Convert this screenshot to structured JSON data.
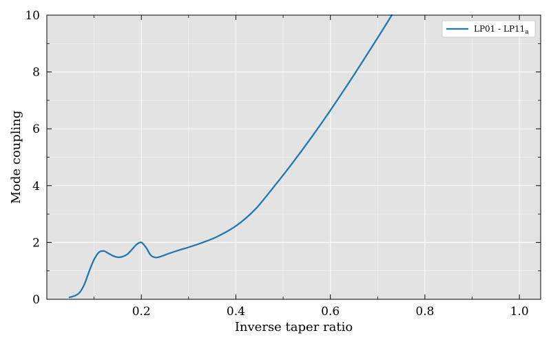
{
  "chart_data": {
    "type": "line",
    "title": "",
    "xlabel": "Inverse taper ratio",
    "ylabel": "Mode coupling",
    "xlim": [
      0.0,
      1.045
    ],
    "ylim": [
      0,
      10
    ],
    "xticks": [
      0.2,
      0.4,
      0.6,
      0.8,
      1.0
    ],
    "xtick_labels": [
      "0.2",
      "0.4",
      "0.6",
      "0.8",
      "1.0"
    ],
    "yticks": [
      0,
      2,
      4,
      6,
      8,
      10
    ],
    "ytick_labels": [
      "0",
      "2",
      "4",
      "6",
      "8",
      "10"
    ],
    "grid": true,
    "legend_position": "top-right",
    "background": "#e3e3e3",
    "series": [
      {
        "name": "LP01 - LP11",
        "name_subscript": "a",
        "color": "#1f77b4",
        "x": [
          0.048,
          0.06,
          0.07,
          0.08,
          0.09,
          0.1,
          0.11,
          0.12,
          0.13,
          0.14,
          0.15,
          0.16,
          0.17,
          0.18,
          0.19,
          0.2,
          0.21,
          0.22,
          0.23,
          0.24,
          0.26,
          0.28,
          0.3,
          0.33,
          0.36,
          0.4,
          0.44,
          0.48,
          0.52,
          0.56,
          0.6,
          0.65,
          0.7,
          0.73
        ],
        "y": [
          0.07,
          0.13,
          0.25,
          0.55,
          1.0,
          1.4,
          1.65,
          1.7,
          1.62,
          1.53,
          1.48,
          1.5,
          1.58,
          1.75,
          1.93,
          2.0,
          1.82,
          1.55,
          1.47,
          1.5,
          1.62,
          1.73,
          1.83,
          2.0,
          2.2,
          2.58,
          3.15,
          3.95,
          4.8,
          5.7,
          6.65,
          7.9,
          9.2,
          10.0
        ]
      }
    ]
  }
}
